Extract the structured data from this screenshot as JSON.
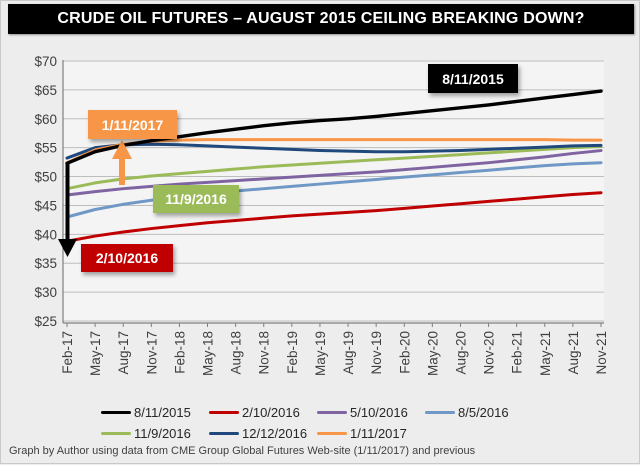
{
  "title": "CRUDE OIL FUTURES – AUGUST 2015 CEILING BREAKING DOWN?",
  "footer": "Graph by Author using data from CME Group Global Futures Web-site  (1/11/2017) and previous",
  "colors": {
    "title_bg": "#000000",
    "title_text": "#ffffff",
    "page_bg": "#ededed",
    "plot_bg": "#f4f4f4",
    "gridline": "#bdbdbd",
    "axis": "#7f7f7f",
    "tick_text": "#404040",
    "down_arrow": "#000000",
    "up_arrow": "#f79646"
  },
  "chart_data": {
    "type": "line",
    "title": "CRUDE OIL FUTURES – AUGUST 2015 CEILING BREAKING DOWN?",
    "xlabel": "",
    "ylabel": "",
    "ylim": [
      25,
      70
    ],
    "y_tick_step": 5,
    "y_tick_prefix": "$",
    "grid": "horizontal",
    "legend_position": "bottom",
    "x_categories": [
      "Feb-17",
      "May-17",
      "Aug-17",
      "Nov-17",
      "Feb-18",
      "May-18",
      "Aug-18",
      "Nov-18",
      "Feb-19",
      "May-19",
      "Aug-19",
      "Nov-19",
      "Feb-20",
      "May-20",
      "Aug-20",
      "Nov-20",
      "Feb-21",
      "May-21",
      "Aug-21",
      "Nov-21"
    ],
    "series": [
      {
        "name": "2/10/2016",
        "color": "#c00000",
        "values": [
          38.8,
          39.7,
          40.4,
          41.0,
          41.5,
          42.0,
          42.4,
          42.8,
          43.2,
          43.5,
          43.8,
          44.1,
          44.5,
          44.9,
          45.3,
          45.7,
          46.1,
          46.5,
          46.9,
          47.2
        ]
      },
      {
        "name": "8/5/2016",
        "color": "#6f98c6",
        "values": [
          43.0,
          44.3,
          45.2,
          45.9,
          46.5,
          47.0,
          47.5,
          47.9,
          48.3,
          48.7,
          49.1,
          49.5,
          49.9,
          50.3,
          50.7,
          51.1,
          51.5,
          51.9,
          52.2,
          52.4
        ]
      },
      {
        "name": "5/10/2016",
        "color": "#8064a2",
        "values": [
          46.8,
          47.4,
          47.9,
          48.3,
          48.7,
          49.0,
          49.3,
          49.6,
          49.9,
          50.2,
          50.5,
          50.8,
          51.2,
          51.6,
          52.0,
          52.4,
          52.9,
          53.4,
          54.0,
          54.5
        ]
      },
      {
        "name": "11/9/2016",
        "color": "#9bbb59",
        "values": [
          47.9,
          48.9,
          49.6,
          50.1,
          50.5,
          50.9,
          51.3,
          51.7,
          52.0,
          52.3,
          52.6,
          52.9,
          53.2,
          53.5,
          53.8,
          54.1,
          54.4,
          54.7,
          55.0,
          55.2
        ]
      },
      {
        "name": "12/12/2016",
        "color": "#1f497d",
        "values": [
          53.2,
          55.0,
          55.5,
          55.6,
          55.5,
          55.3,
          55.1,
          54.9,
          54.7,
          54.5,
          54.4,
          54.3,
          54.3,
          54.4,
          54.5,
          54.7,
          54.9,
          55.1,
          55.3,
          55.4
        ]
      },
      {
        "name": "1/11/2017",
        "color": "#f79646",
        "values": [
          52.4,
          54.6,
          55.6,
          56.1,
          56.3,
          56.4,
          56.4,
          56.4,
          56.4,
          56.4,
          56.4,
          56.4,
          56.4,
          56.4,
          56.4,
          56.4,
          56.4,
          56.4,
          56.3,
          56.3
        ]
      },
      {
        "name": "8/11/2015",
        "color": "#000000",
        "values": [
          52.3,
          54.3,
          55.4,
          56.2,
          56.9,
          57.6,
          58.2,
          58.8,
          59.3,
          59.7,
          60.0,
          60.4,
          60.9,
          61.4,
          61.9,
          62.4,
          63.0,
          63.6,
          64.2,
          64.8
        ]
      }
    ],
    "annotations": [
      {
        "label": "8/11/2015",
        "color": "#000000"
      },
      {
        "label": "1/11/2017",
        "color": "#f79646"
      },
      {
        "label": "11/9/2016",
        "color": "#9bbb59"
      },
      {
        "label": "2/10/2016",
        "color": "#c00000"
      }
    ]
  },
  "legend": {
    "rows": [
      [
        "8/11/2015",
        "2/10/2016",
        "5/10/2016",
        "8/5/2016"
      ],
      [
        "11/9/2016",
        "12/12/2016",
        "1/11/2017"
      ]
    ]
  }
}
